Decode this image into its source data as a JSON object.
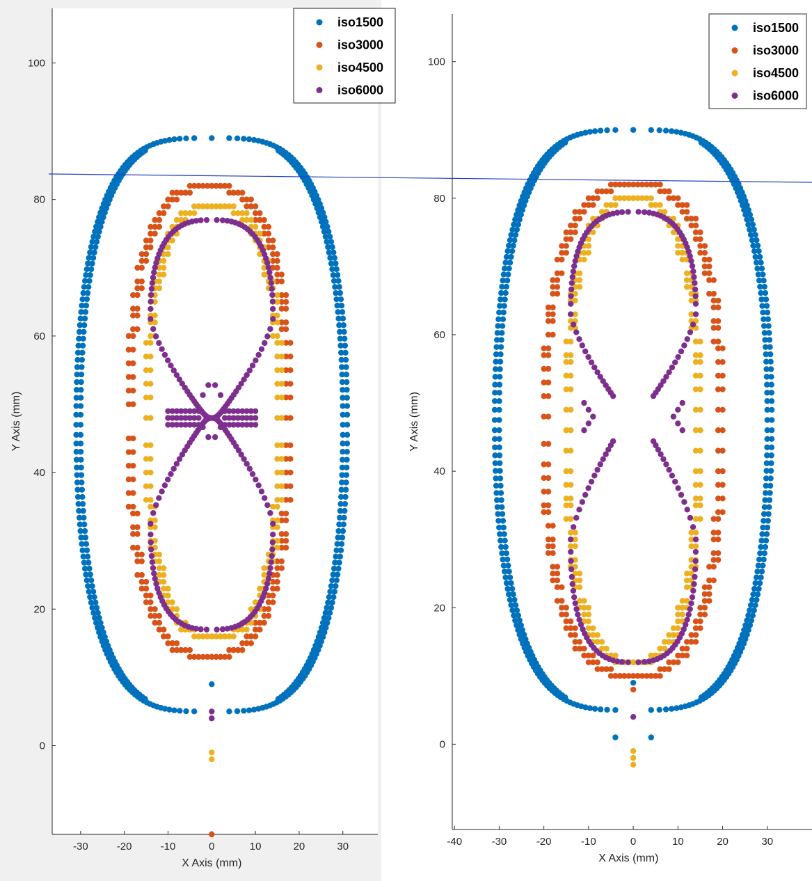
{
  "series_colors": {
    "iso1500": "#0072bd",
    "iso3000": "#d95319",
    "iso4500": "#edb120",
    "iso6000": "#7e2f8e"
  },
  "reference_line_color": "#1f3fbf",
  "chart_data": [
    {
      "type": "scatter",
      "xlabel": "X Axis (mm)",
      "ylabel": "Y Axis (mm)",
      "xlim": [
        -36.5,
        38
      ],
      "ylim": [
        -13,
        108
      ],
      "xticks": [
        -30,
        -20,
        -10,
        0,
        10,
        20,
        30
      ],
      "yticks": [
        0,
        20,
        40,
        60,
        80,
        100
      ],
      "legend": [
        "iso1500",
        "iso3000",
        "iso4500",
        "iso6000"
      ],
      "legend_position": "top-right",
      "grid": false,
      "series": [
        {
          "name": "iso1500",
          "shape": "outer_contour",
          "x_extent": [
            -31,
            31
          ],
          "y_extent": [
            5,
            89
          ],
          "bottom_notch": true
        },
        {
          "name": "iso3000",
          "shape": "rounded_loop",
          "x_extent": [
            -19,
            18
          ],
          "y_extent": [
            13,
            82
          ],
          "isolated_points": [
            [
              0,
              -13
            ]
          ]
        },
        {
          "name": "iso4500",
          "shape": "rounded_loop",
          "x_extent": [
            -15,
            16
          ],
          "y_extent": [
            16,
            79
          ],
          "isolated_points": [
            [
              0,
              -1
            ],
            [
              0,
              -2
            ]
          ]
        },
        {
          "name": "iso6000",
          "shape": "figure_eight",
          "x_extent": [
            -14,
            14
          ],
          "y_extent": [
            17,
            77
          ],
          "waist": {
            "y": 48,
            "x_gap": 0
          },
          "isolated_points": [
            [
              0,
              5
            ],
            [
              0,
              4
            ]
          ]
        }
      ]
    },
    {
      "type": "scatter",
      "xlabel": "X Axis (mm)",
      "ylabel": "Y Axis (mm)",
      "xlim": [
        -40.5,
        40
      ],
      "ylim": [
        -12.5,
        107
      ],
      "xticks": [
        -40,
        -30,
        -20,
        -10,
        0,
        10,
        20,
        30
      ],
      "yticks": [
        0,
        20,
        40,
        60,
        80,
        100
      ],
      "legend": [
        "iso1500",
        "iso3000",
        "iso4500",
        "iso6000"
      ],
      "legend_position": "top-right",
      "grid": false,
      "series": [
        {
          "name": "iso1500",
          "shape": "outer_contour",
          "x_extent": [
            -31,
            31
          ],
          "y_extent": [
            5,
            90
          ],
          "bottom_notch": true,
          "isolated_points": [
            [
              -4,
              1
            ],
            [
              4,
              1
            ]
          ]
        },
        {
          "name": "iso3000",
          "shape": "rounded_loop",
          "x_extent": [
            -20,
            20
          ],
          "y_extent": [
            10,
            82
          ],
          "isolated_points": [
            [
              0,
              8
            ]
          ]
        },
        {
          "name": "iso4500",
          "shape": "rounded_loop",
          "x_extent": [
            -15,
            15
          ],
          "y_extent": [
            12,
            80
          ],
          "isolated_points": [
            [
              0,
              -1
            ],
            [
              0,
              -2
            ],
            [
              0,
              -3
            ]
          ]
        },
        {
          "name": "iso6000",
          "shape": "pinched_loop",
          "x_extent": [
            -14,
            14
          ],
          "y_extent": [
            12,
            78
          ],
          "waist": {
            "y": 48,
            "x_gap": 9
          },
          "isolated_points": [
            [
              0,
              4
            ]
          ]
        }
      ]
    }
  ]
}
